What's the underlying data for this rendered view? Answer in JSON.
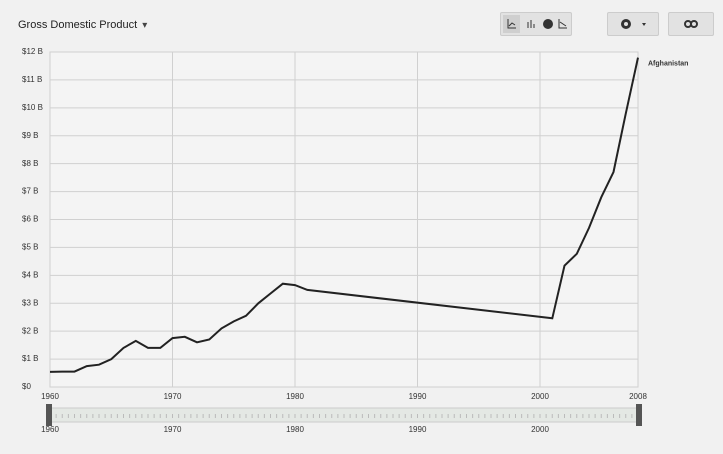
{
  "chart_data": {
    "type": "line",
    "title": "Gross Domestic Product",
    "x": [
      1960,
      1961,
      1962,
      1963,
      1964,
      1965,
      1966,
      1967,
      1968,
      1969,
      1970,
      1971,
      1972,
      1973,
      1974,
      1975,
      1976,
      1977,
      1978,
      1979,
      1980,
      1981,
      2001,
      2002,
      2003,
      2004,
      2005,
      2006,
      2007,
      2008
    ],
    "series": [
      {
        "name": "Afghanistan",
        "color": "#222222",
        "values": [
          0.54,
          0.55,
          0.55,
          0.75,
          0.8,
          1.0,
          1.4,
          1.65,
          1.4,
          1.4,
          1.75,
          1.8,
          1.6,
          1.7,
          2.1,
          2.35,
          2.55,
          3.0,
          3.35,
          3.7,
          3.65,
          3.48,
          2.46,
          4.35,
          4.77,
          5.7,
          6.8,
          7.7,
          9.8,
          11.8
        ]
      }
    ],
    "xlim": [
      1960,
      2008
    ],
    "xticks": [
      1960,
      1970,
      1980,
      1990,
      2000,
      2008
    ],
    "ylim": [
      0,
      12
    ],
    "yticks": [
      {
        "value": 0,
        "label": "$0"
      },
      {
        "value": 1,
        "label": "$1 B"
      },
      {
        "value": 2,
        "label": "$2 B"
      },
      {
        "value": 3,
        "label": "$3 B"
      },
      {
        "value": 4,
        "label": "$4 B"
      },
      {
        "value": 5,
        "label": "$5 B"
      },
      {
        "value": 6,
        "label": "$6 B"
      },
      {
        "value": 7,
        "label": "$7 B"
      },
      {
        "value": 8,
        "label": "$8 B"
      },
      {
        "value": 9,
        "label": "$9 B"
      },
      {
        "value": 10,
        "label": "$10 B"
      },
      {
        "value": 11,
        "label": "$11 B"
      },
      {
        "value": 12,
        "label": "$12 B"
      }
    ],
    "grid": true,
    "timeline_ticks": [
      1960,
      1970,
      1980,
      1990,
      2000
    ]
  }
}
